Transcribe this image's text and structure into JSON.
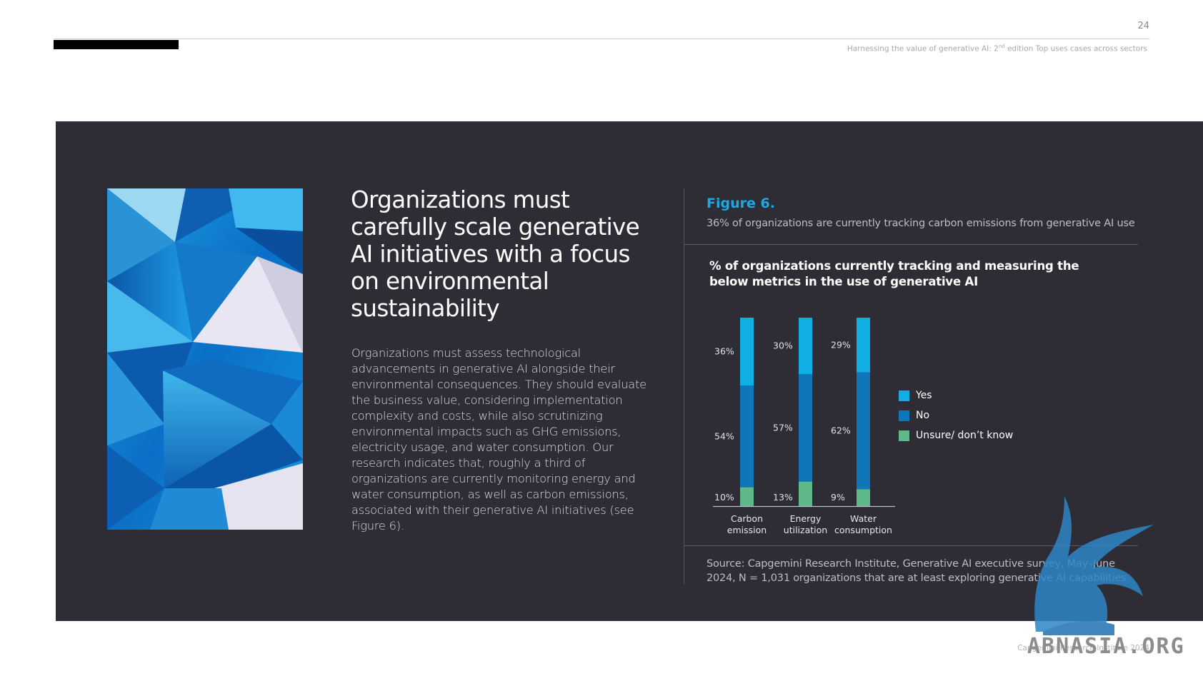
{
  "header": {
    "page_number": "24",
    "running_head_part1": "Harnessing the value of generative AI: 2",
    "running_head_sup": "nd",
    "running_head_part2": " edition Top uses cases across sectors"
  },
  "main": {
    "headline": "Organizations must carefully scale generative AI initiatives with a focus on environmental sustainability",
    "body": "Organizations must assess technological advancements in generative AI alongside their environmental consequences. They should evaluate the business value, considering implementation complexity and costs, while also scrutinizing environmental impacts such as GHG emissions, electricity usage, and water consumption. Our research indicates that, roughly a third of organizations are currently monitoring energy and water consumption, as well as carbon emissions, associated with their generative AI initiatives (see Figure 6)."
  },
  "figure": {
    "label": "Figure 6.",
    "subtitle": "36% of organizations are currently tracking carbon emissions from generative AI use",
    "source": "Source: Capgemini Research Institute, Generative AI executive survey, May–June 2024, N = 1,031 organizations that are at least exploring generative AI capabilities."
  },
  "chart_data": {
    "type": "bar",
    "stacked": true,
    "title": "% of organizations currently tracking and measuring the below metrics in the use of generative AI",
    "categories": [
      [
        "Carbon",
        "emission"
      ],
      [
        "Energy",
        "utilization"
      ],
      [
        "Water",
        "consumption"
      ]
    ],
    "series": [
      {
        "name": "Unsure/ don’t know",
        "values": [
          10,
          13,
          9
        ],
        "labels": [
          "10%",
          "13%",
          "9%"
        ],
        "color": "#5fb88a"
      },
      {
        "name": "No",
        "values": [
          54,
          57,
          62
        ],
        "labels": [
          "54%",
          "57%",
          "62%"
        ],
        "color": "#0f76b8"
      },
      {
        "name": "Yes",
        "values": [
          36,
          30,
          29
        ],
        "labels": [
          "36%",
          "30%",
          "29%"
        ],
        "color": "#11aee3"
      }
    ],
    "ylim": [
      0,
      100
    ],
    "legend": "right",
    "grid": false
  },
  "footer": {
    "copyright": "Capgemini Research Institute 2024",
    "watermark": "ABNASIA.ORG"
  },
  "colors": {
    "panel": "#2e2d36",
    "accent": "#1aa9e0"
  }
}
